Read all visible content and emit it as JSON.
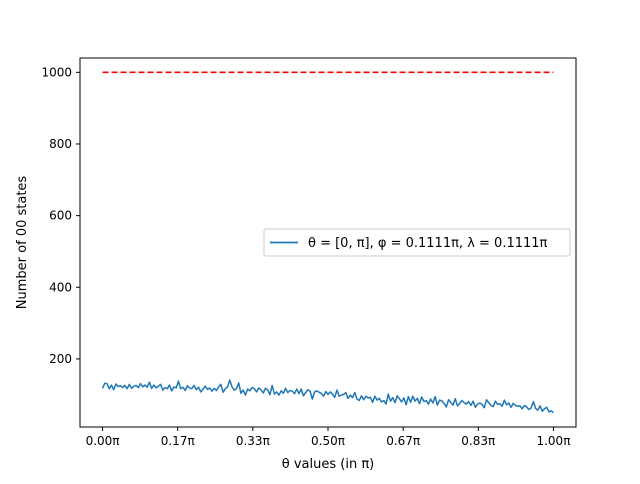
{
  "chart_data": {
    "type": "line",
    "title": "",
    "xlabel": "θ values (in π)",
    "ylabel": "Number of 00 states",
    "xlim": [
      -0.05,
      1.05
    ],
    "ylim": [
      10,
      1040
    ],
    "xticks": [
      {
        "value": 0.0,
        "label": "0.00π"
      },
      {
        "value": 0.1667,
        "label": "0.17π"
      },
      {
        "value": 0.3333,
        "label": "0.33π"
      },
      {
        "value": 0.5,
        "label": "0.50π"
      },
      {
        "value": 0.6667,
        "label": "0.67π"
      },
      {
        "value": 0.8333,
        "label": "0.83π"
      },
      {
        "value": 1.0,
        "label": "1.00π"
      }
    ],
    "yticks": [
      {
        "value": 200,
        "label": "200"
      },
      {
        "value": 400,
        "label": "400"
      },
      {
        "value": 600,
        "label": "600"
      },
      {
        "value": 800,
        "label": "800"
      },
      {
        "value": 1000,
        "label": "1000"
      }
    ],
    "grid": false,
    "legend": "center-right",
    "series": [
      {
        "name": "θ = [0, π], φ = 0.1111π, λ = 0.1111π",
        "color": "#1f77b4",
        "style": "solid",
        "x_start": 0.0,
        "x_end": 1.0,
        "values": [
          118,
          132,
          131,
          117,
          127,
          114,
          130,
          123,
          125,
          120,
          126,
          117,
          129,
          118,
          124,
          126,
          120,
          131,
          122,
          127,
          121,
          135,
          118,
          127,
          119,
          124,
          129,
          113,
          120,
          117,
          127,
          111,
          122,
          119,
          138,
          117,
          121,
          112,
          125,
          119,
          117,
          126,
          114,
          121,
          108,
          116,
          124,
          115,
          119,
          110,
          118,
          112,
          121,
          129,
          107,
          117,
          122,
          141,
          122,
          113,
          117,
          133,
          104,
          113,
          99,
          116,
          111,
          120,
          117,
          108,
          119,
          114,
          105,
          118,
          113,
          100,
          126,
          102,
          108,
          99,
          111,
          104,
          118,
          106,
          112,
          110,
          103,
          116,
          103,
          116,
          97,
          106,
          114,
          110,
          88,
          108,
          111,
          107,
          104,
          96,
          109,
          101,
          108,
          102,
          93,
          113,
          96,
          99,
          101,
          106,
          90,
          99,
          92,
          106,
          88,
          84,
          97,
          86,
          96,
          91,
          93,
          79,
          96,
          85,
          90,
          80,
          84,
          74,
          102,
          82,
          92,
          78,
          97,
          89,
          80,
          91,
          72,
          95,
          79,
          96,
          82,
          90,
          75,
          94,
          81,
          84,
          74,
          88,
          77,
          95,
          71,
          85,
          83,
          76,
          66,
          86,
          79,
          71,
          89,
          69,
          76,
          84,
          78,
          74,
          81,
          70,
          82,
          65,
          74,
          77,
          73,
          64,
          86,
          78,
          70,
          67,
          82,
          73,
          75,
          68,
          85,
          72,
          77,
          65,
          76,
          70,
          68,
          69,
          61,
          70,
          66,
          59,
          63,
          81,
          62,
          57,
          69,
          54,
          61,
          65,
          52,
          55,
          50
        ]
      },
      {
        "name": "",
        "color": "#ff0000",
        "style": "dashed",
        "x_start": 0.0,
        "x_end": 1.0,
        "values": [
          1000,
          1000
        ]
      }
    ]
  }
}
